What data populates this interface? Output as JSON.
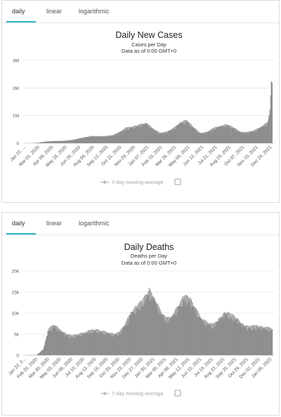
{
  "tabs": [
    "daily",
    "linear",
    "logarithmic"
  ],
  "colors": {
    "accent": "#2ab3c8",
    "bars": "#8f8f8f",
    "axis": "#cccccc",
    "grid": "#e6e6e6",
    "legend": "#bbbbbb"
  },
  "chart_data": [
    {
      "type": "bar",
      "title": "Daily New Cases",
      "subtitle": "Cases per Day",
      "subtitle2": "Data as of 0:00 GMT+0",
      "xlabel": "",
      "ylabel": "",
      "ylim": [
        0,
        3000000
      ],
      "y_ticks": [
        0,
        1000000,
        2000000,
        3000000
      ],
      "y_tick_labels": [
        "0",
        "1M",
        "2M",
        "3M"
      ],
      "grid": true,
      "legend": "bottom-center",
      "legend_label": "7-day moving average",
      "x_tick_labels": [
        "Jan 22, ...",
        "Mar 01, 2020",
        "Apr 09, 2020",
        "May 18, 2020",
        "Jun 26, 2020",
        "Aug 04, 2020",
        "Sep 12, 2020",
        "Oct 21, 2020",
        "Nov 29, 2020",
        "Jan 07, 2021",
        "Feb 15, 2021",
        "Mar 26, 2021",
        "May 04, 2021",
        "Jun 12, 2021",
        "Jul 21, 2021",
        "Aug 29, 2021",
        "Oct 07, 2021",
        "Nov 15, 2021",
        "Dec 24, 2021"
      ],
      "x": [
        "2020-01-22",
        "2020-02-15",
        "2020-03-01",
        "2020-03-20",
        "2020-04-09",
        "2020-05-01",
        "2020-05-18",
        "2020-06-10",
        "2020-06-26",
        "2020-07-15",
        "2020-08-04",
        "2020-08-25",
        "2020-09-12",
        "2020-10-01",
        "2020-10-21",
        "2020-11-10",
        "2020-11-29",
        "2020-12-15",
        "2021-01-07",
        "2021-01-25",
        "2021-02-15",
        "2021-03-05",
        "2021-03-26",
        "2021-04-15",
        "2021-05-04",
        "2021-05-20",
        "2021-06-12",
        "2021-07-01",
        "2021-07-21",
        "2021-08-10",
        "2021-08-29",
        "2021-09-20",
        "2021-10-07",
        "2021-10-25",
        "2021-11-15",
        "2021-12-05",
        "2021-12-24",
        "2021-12-31",
        "2022-01-04",
        "2022-01-06"
      ],
      "values": [
        0,
        2000,
        20000,
        60000,
        80000,
        85000,
        95000,
        130000,
        180000,
        230000,
        270000,
        260000,
        270000,
        300000,
        420000,
        580000,
        620000,
        680000,
        760000,
        560000,
        390000,
        420000,
        560000,
        780000,
        860000,
        640000,
        380000,
        420000,
        570000,
        650000,
        700000,
        560000,
        420000,
        410000,
        480000,
        620000,
        780000,
        1300000,
        2600000,
        2100000
      ]
    },
    {
      "type": "bar",
      "title": "Daily Deaths",
      "subtitle": "Deaths per Day",
      "subtitle2": "Data as of 0:00 GMT+0",
      "xlabel": "",
      "ylabel": "",
      "ylim": [
        0,
        20000
      ],
      "y_ticks": [
        0,
        5000,
        10000,
        15000,
        20000
      ],
      "y_tick_labels": [
        "0",
        "5k",
        "10k",
        "15k",
        "20k"
      ],
      "grid": true,
      "legend": "bottom-center",
      "legend_label": "7-day moving average",
      "x_tick_labels": [
        "Jan 22, 2...",
        "Feb 25, 2020",
        "Mar 30, 2020",
        "May 03, 2020",
        "Jun 06, 2020",
        "Jul 10, 2020",
        "Aug 13, 2020",
        "Sep 16, 2020",
        "Oct 20, 2020",
        "Nov 23, 2020",
        "Dec 27, 2020",
        "Jan 30, 2021",
        "Mar 05, 2021",
        "Apr 08, 2021",
        "May 12, 2021",
        "Jun 15, 2021",
        "Jul 19, 2021",
        "Aug 22, 2021",
        "Sep 25, 2021",
        "Oct 29, 2021",
        "Dec 02, 2021",
        "Jan 05, 2022"
      ],
      "x": [
        "2020-01-22",
        "2020-02-25",
        "2020-03-15",
        "2020-03-30",
        "2020-04-15",
        "2020-05-03",
        "2020-05-20",
        "2020-06-06",
        "2020-07-10",
        "2020-07-25",
        "2020-08-13",
        "2020-09-16",
        "2020-10-05",
        "2020-10-20",
        "2020-11-05",
        "2020-11-23",
        "2020-12-10",
        "2020-12-27",
        "2021-01-15",
        "2021-01-30",
        "2021-02-15",
        "2021-03-05",
        "2021-03-20",
        "2021-04-08",
        "2021-04-25",
        "2021-05-12",
        "2021-05-28",
        "2021-06-15",
        "2021-07-01",
        "2021-07-19",
        "2021-08-05",
        "2021-08-22",
        "2021-09-08",
        "2021-09-25",
        "2021-10-12",
        "2021-10-29",
        "2021-11-15",
        "2021-12-02",
        "2021-12-20",
        "2022-01-05"
      ],
      "values": [
        0,
        50,
        1500,
        6500,
        7500,
        6200,
        5200,
        4800,
        5500,
        6000,
        6300,
        5600,
        5200,
        5600,
        7500,
        10500,
        12000,
        13500,
        16000,
        14000,
        11000,
        9000,
        9500,
        12000,
        14500,
        14000,
        11500,
        9000,
        8000,
        7500,
        9000,
        10500,
        10000,
        9000,
        7500,
        7000,
        7200,
        7000,
        6800,
        6500
      ]
    }
  ]
}
